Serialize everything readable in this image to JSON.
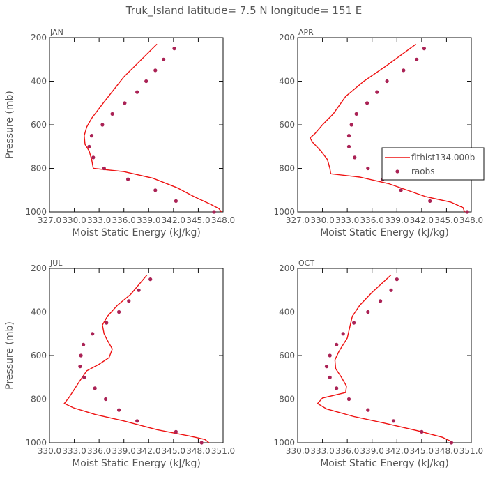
{
  "title": "Truk_Island  latitude= 7.5 N longitude= 151 E",
  "colors": {
    "model": "#ee1111",
    "obs": "#aa2255",
    "frame": "#111111",
    "text": "#555555"
  },
  "chart_data": [
    {
      "type": "line",
      "panel_label": "JAN",
      "xlabel": "Moist Static Energy (kJ/kg)",
      "ylabel": "Pressure (mb)",
      "xlim": [
        327.0,
        348.0
      ],
      "ylim": [
        1000,
        200
      ],
      "xticks": [
        327.0,
        330.0,
        333.0,
        336.0,
        339.0,
        342.0,
        345.0,
        348.0
      ],
      "xtick_labels": [
        "327.0",
        "330.0",
        "333.0",
        "336.0",
        "339.0",
        "342.0",
        "345.0",
        "348.0"
      ],
      "yticks": [
        200,
        400,
        600,
        800,
        1000
      ],
      "ytick_labels": [
        "200",
        "400",
        "600",
        "800",
        "1000"
      ],
      "series": [
        {
          "kind": "line",
          "points": [
            [
              340.0,
              230
            ],
            [
              336.0,
              380
            ],
            [
              333.5,
              500
            ],
            [
              332.1,
              570
            ],
            [
              331.5,
              610
            ],
            [
              331.2,
              650
            ],
            [
              331.3,
              690
            ],
            [
              331.8,
              720
            ],
            [
              332.1,
              760
            ],
            [
              332.3,
              800
            ],
            [
              336.0,
              815
            ],
            [
              339.5,
              845
            ],
            [
              342.5,
              890
            ],
            [
              344.5,
              930
            ],
            [
              346.5,
              965
            ],
            [
              347.5,
              985
            ],
            [
              347.8,
              1000
            ]
          ]
        },
        {
          "kind": "scatter",
          "points": [
            [
              342.1,
              250
            ],
            [
              340.8,
              300
            ],
            [
              339.8,
              350
            ],
            [
              338.7,
              400
            ],
            [
              337.6,
              450
            ],
            [
              336.1,
              500
            ],
            [
              334.6,
              550
            ],
            [
              333.4,
              600
            ],
            [
              332.1,
              650
            ],
            [
              331.8,
              700
            ],
            [
              332.3,
              750
            ],
            [
              333.6,
              800
            ],
            [
              336.5,
              850
            ],
            [
              339.8,
              900
            ],
            [
              342.3,
              950
            ],
            [
              346.9,
              1000
            ]
          ]
        }
      ]
    },
    {
      "type": "line",
      "panel_label": "APR",
      "xlabel": "Moist Static Energy (kJ/kg)",
      "ylabel": "",
      "xlim": [
        327.0,
        348.0
      ],
      "ylim": [
        1000,
        200
      ],
      "xticks": [
        327.0,
        330.0,
        333.0,
        336.0,
        339.0,
        342.0,
        345.0,
        348.0
      ],
      "xtick_labels": [
        "327.0",
        "330.0",
        "333.0",
        "336.0",
        "339.0",
        "342.0",
        "345.0",
        "348.0"
      ],
      "yticks": [
        200,
        400,
        600,
        800,
        1000
      ],
      "ytick_labels": [
        "200",
        "400",
        "600",
        "800",
        "1000"
      ],
      "legend": {
        "placement": "right",
        "entries": [
          "flthist134.000b",
          "raobs"
        ]
      },
      "series": [
        {
          "kind": "line",
          "name": "flthist134.000b",
          "points": [
            [
              341.3,
              230
            ],
            [
              337.7,
              330
            ],
            [
              335.0,
              400
            ],
            [
              332.8,
              470
            ],
            [
              331.3,
              550
            ],
            [
              330.0,
              600
            ],
            [
              329.1,
              640
            ],
            [
              328.5,
              660
            ],
            [
              328.8,
              680
            ],
            [
              329.8,
              720
            ],
            [
              330.6,
              760
            ],
            [
              330.9,
              800
            ],
            [
              331.0,
              825
            ],
            [
              334.5,
              840
            ],
            [
              338.0,
              870
            ],
            [
              342.5,
              930
            ],
            [
              345.5,
              955
            ],
            [
              347.0,
              980
            ],
            [
              347.2,
              1000
            ]
          ]
        },
        {
          "kind": "scatter",
          "name": "raobs",
          "points": [
            [
              342.3,
              250
            ],
            [
              341.4,
              300
            ],
            [
              339.8,
              350
            ],
            [
              337.8,
              400
            ],
            [
              336.6,
              450
            ],
            [
              335.4,
              500
            ],
            [
              334.1,
              550
            ],
            [
              333.5,
              600
            ],
            [
              333.2,
              650
            ],
            [
              333.2,
              700
            ],
            [
              333.9,
              750
            ],
            [
              335.5,
              800
            ],
            [
              337.3,
              850
            ],
            [
              339.5,
              900
            ],
            [
              343.0,
              950
            ],
            [
              347.5,
              1000
            ]
          ]
        }
      ]
    },
    {
      "type": "line",
      "panel_label": "JUL",
      "xlabel": "Moist Static Energy (kJ/kg)",
      "ylabel": "Pressure (mb)",
      "xlim": [
        330.0,
        351.0
      ],
      "ylim": [
        1000,
        200
      ],
      "xticks": [
        330.0,
        333.0,
        336.0,
        339.0,
        342.0,
        345.0,
        348.0,
        351.0
      ],
      "xtick_labels": [
        "330.0",
        "333.0",
        "336.0",
        "339.0",
        "342.0",
        "345.0",
        "348.0",
        "351.0"
      ],
      "yticks": [
        200,
        400,
        600,
        800,
        1000
      ],
      "ytick_labels": [
        "200",
        "400",
        "600",
        "800",
        "1000"
      ],
      "series": [
        {
          "kind": "line",
          "points": [
            [
              341.8,
              230
            ],
            [
              339.8,
              320
            ],
            [
              338.2,
              370
            ],
            [
              337.0,
              420
            ],
            [
              336.4,
              460
            ],
            [
              336.6,
              500
            ],
            [
              337.0,
              530
            ],
            [
              337.6,
              570
            ],
            [
              337.2,
              610
            ],
            [
              336.0,
              640
            ],
            [
              334.5,
              670
            ],
            [
              333.6,
              720
            ],
            [
              332.4,
              790
            ],
            [
              331.8,
              820
            ],
            [
              332.9,
              840
            ],
            [
              335.5,
              870
            ],
            [
              339.0,
              900
            ],
            [
              343.0,
              940
            ],
            [
              347.0,
              970
            ],
            [
              348.8,
              985
            ],
            [
              349.3,
              1000
            ]
          ]
        },
        {
          "kind": "scatter",
          "points": [
            [
              342.2,
              250
            ],
            [
              340.8,
              300
            ],
            [
              339.6,
              350
            ],
            [
              338.4,
              400
            ],
            [
              336.9,
              450
            ],
            [
              335.2,
              500
            ],
            [
              334.1,
              550
            ],
            [
              333.8,
              600
            ],
            [
              333.7,
              650
            ],
            [
              334.2,
              700
            ],
            [
              335.5,
              750
            ],
            [
              336.8,
              800
            ],
            [
              338.4,
              850
            ],
            [
              340.6,
              900
            ],
            [
              345.3,
              950
            ],
            [
              348.4,
              1000
            ]
          ]
        }
      ]
    },
    {
      "type": "line",
      "panel_label": "OCT",
      "xlabel": "Moist Static Energy (kJ/kg)",
      "ylabel": "",
      "xlim": [
        330.0,
        351.0
      ],
      "ylim": [
        1000,
        200
      ],
      "xticks": [
        330.0,
        333.0,
        336.0,
        339.0,
        342.0,
        345.0,
        348.0,
        351.0
      ],
      "xtick_labels": [
        "330.0",
        "333.0",
        "336.0",
        "339.0",
        "342.0",
        "345.0",
        "348.0",
        "351.0"
      ],
      "yticks": [
        200,
        400,
        600,
        800,
        1000
      ],
      "ytick_labels": [
        "200",
        "400",
        "600",
        "800",
        "1000"
      ],
      "series": [
        {
          "kind": "line",
          "points": [
            [
              341.3,
              230
            ],
            [
              339.0,
              310
            ],
            [
              337.5,
              370
            ],
            [
              336.6,
              420
            ],
            [
              336.3,
              470
            ],
            [
              336.0,
              520
            ],
            [
              335.0,
              580
            ],
            [
              334.5,
              620
            ],
            [
              334.6,
              660
            ],
            [
              335.3,
              700
            ],
            [
              335.9,
              740
            ],
            [
              335.8,
              770
            ],
            [
              333.0,
              795
            ],
            [
              332.4,
              820
            ],
            [
              333.5,
              845
            ],
            [
              336.8,
              880
            ],
            [
              340.5,
              910
            ],
            [
              344.5,
              945
            ],
            [
              347.5,
              975
            ],
            [
              348.6,
              995
            ],
            [
              348.8,
              1000
            ]
          ]
        },
        {
          "kind": "scatter",
          "points": [
            [
              342.0,
              250
            ],
            [
              341.3,
              300
            ],
            [
              340.0,
              350
            ],
            [
              338.5,
              400
            ],
            [
              336.8,
              450
            ],
            [
              335.5,
              500
            ],
            [
              334.7,
              550
            ],
            [
              333.9,
              600
            ],
            [
              333.5,
              650
            ],
            [
              333.9,
              700
            ],
            [
              334.7,
              750
            ],
            [
              336.2,
              800
            ],
            [
              338.5,
              850
            ],
            [
              341.6,
              900
            ],
            [
              345.0,
              950
            ],
            [
              348.6,
              1000
            ]
          ]
        }
      ]
    }
  ]
}
